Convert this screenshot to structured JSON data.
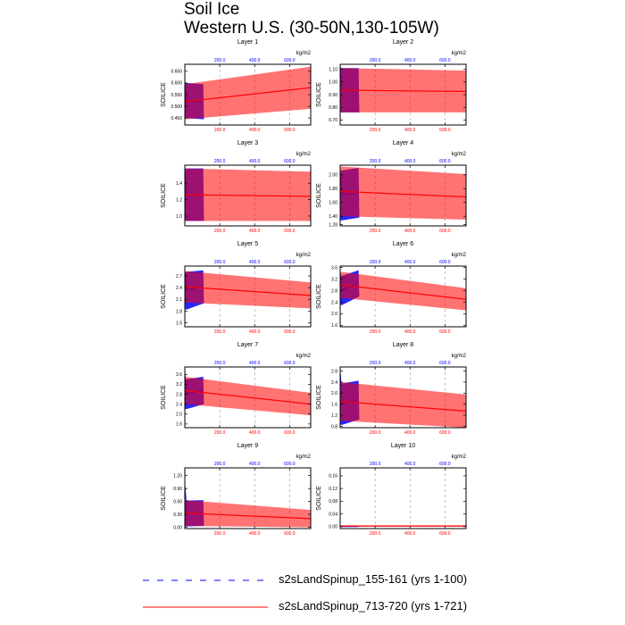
{
  "figure": {
    "title": "Soil Ice",
    "subtitle": "Western U.S. (30-50N,130-105W)"
  },
  "legend": [
    {
      "label": "s2sLandSpinup_155-161 (yrs 1-100)",
      "color": "#0000ff",
      "style": "dashed"
    },
    {
      "label": "s2sLandSpinup_713-720 (yrs 1-721)",
      "color": "#ff0000",
      "style": "solid"
    }
  ],
  "chart_data": [
    {
      "type": "line",
      "panel_title": "Layer 1",
      "ylabel": "SOILICE",
      "top_axis_label": "kg/m2",
      "ylim": [
        0.42,
        0.68
      ],
      "yticks": [
        0.45,
        0.5,
        0.55,
        0.6,
        0.65
      ],
      "ytick_decimals": 3,
      "xticks": [
        200,
        400,
        600
      ],
      "xlim": [
        0,
        721
      ],
      "series": [
        {
          "name": "s2sLandSpinup_155-161 (yrs 1-100)",
          "color": "#0000ff",
          "x_range": [
            1,
            100
          ],
          "mean": [
            0.525,
            0.52
          ],
          "amplitude": [
            0.075,
            0.075
          ],
          "spike": 0.6
        },
        {
          "name": "s2sLandSpinup_713-720 (yrs 1-721)",
          "color": "#ff0000",
          "x_range": [
            1,
            721
          ],
          "mean": [
            0.52,
            0.58
          ],
          "amplitude": [
            0.075,
            0.09
          ],
          "spike": 0.6
        }
      ]
    },
    {
      "type": "line",
      "panel_title": "Layer 2",
      "ylabel": "SOILICE",
      "top_axis_label": "kg/m2",
      "ylim": [
        0.66,
        1.14
      ],
      "yticks": [
        0.7,
        0.8,
        0.9,
        1.0,
        1.1
      ],
      "ytick_decimals": 2,
      "xticks": [
        200,
        400,
        600
      ],
      "xlim": [
        0,
        721
      ],
      "series": [
        {
          "name": "s2sLandSpinup_155-161 (yrs 1-100)",
          "color": "#0000ff",
          "x_range": [
            1,
            100
          ],
          "mean": [
            0.935,
            0.935
          ],
          "amplitude": [
            0.175,
            0.175
          ],
          "spike": 1.12
        },
        {
          "name": "s2sLandSpinup_713-720 (yrs 1-721)",
          "color": "#ff0000",
          "x_range": [
            1,
            721
          ],
          "mean": [
            0.935,
            0.925
          ],
          "amplitude": [
            0.175,
            0.165
          ],
          "spike": 1.12
        }
      ]
    },
    {
      "type": "line",
      "panel_title": "Layer 3",
      "ylabel": "SOILICE",
      "top_axis_label": "kg/m2",
      "ylim": [
        0.88,
        1.62
      ],
      "yticks": [
        1.0,
        1.2,
        1.4
      ],
      "ytick_decimals": 1,
      "xticks": [
        200,
        400,
        600
      ],
      "xlim": [
        0,
        721
      ],
      "series": [
        {
          "name": "s2sLandSpinup_155-161 (yrs 1-100)",
          "color": "#0000ff",
          "x_range": [
            1,
            100
          ],
          "mean": [
            1.26,
            1.26
          ],
          "amplitude": [
            0.32,
            0.32
          ],
          "spike": 1.55
        },
        {
          "name": "s2sLandSpinup_713-720 (yrs 1-721)",
          "color": "#ff0000",
          "x_range": [
            1,
            721
          ],
          "mean": [
            1.26,
            1.24
          ],
          "amplitude": [
            0.32,
            0.3
          ],
          "spike": 1.55
        }
      ]
    },
    {
      "type": "line",
      "panel_title": "Layer 4",
      "ylabel": "SOILICE",
      "top_axis_label": "kg/m2",
      "ylim": [
        1.26,
        2.14
      ],
      "yticks": [
        1.28,
        1.4,
        1.6,
        1.8,
        2.0
      ],
      "ytick_decimals": 2,
      "xticks": [
        200,
        400,
        600
      ],
      "xlim": [
        0,
        721
      ],
      "series": [
        {
          "name": "s2sLandSpinup_155-161 (yrs 1-100)",
          "color": "#0000ff",
          "x_range": [
            1,
            100
          ],
          "mean": [
            1.7,
            1.74
          ],
          "amplitude": [
            0.36,
            0.36
          ],
          "spike": 2.05
        },
        {
          "name": "s2sLandSpinup_713-720 (yrs 1-721)",
          "color": "#ff0000",
          "x_range": [
            1,
            721
          ],
          "mean": [
            1.76,
            1.68
          ],
          "amplitude": [
            0.36,
            0.33
          ],
          "spike": 2.05
        }
      ]
    },
    {
      "type": "line",
      "panel_title": "Layer 5",
      "ylabel": "SOILICE",
      "top_axis_label": "kg/m2",
      "ylim": [
        1.4,
        2.95
      ],
      "yticks": [
        1.5,
        1.8,
        2.1,
        2.4,
        2.7
      ],
      "ytick_decimals": 1,
      "xticks": [
        200,
        400,
        600
      ],
      "xlim": [
        0,
        721
      ],
      "series": [
        {
          "name": "s2sLandSpinup_155-161 (yrs 1-100)",
          "color": "#0000ff",
          "x_range": [
            1,
            100
          ],
          "mean": [
            2.32,
            2.42
          ],
          "amplitude": [
            0.48,
            0.42
          ],
          "spike": 2.8
        },
        {
          "name": "s2sLandSpinup_713-720 (yrs 1-721)",
          "color": "#ff0000",
          "x_range": [
            1,
            721
          ],
          "mean": [
            2.42,
            2.2
          ],
          "amplitude": [
            0.4,
            0.33
          ],
          "spike": 2.8
        }
      ]
    },
    {
      "type": "line",
      "panel_title": "Layer 6",
      "ylabel": "SOILICE",
      "top_axis_label": "kg/m2",
      "ylim": [
        1.55,
        3.65
      ],
      "yticks": [
        1.6,
        2.0,
        2.4,
        2.8,
        3.2,
        3.6
      ],
      "ytick_decimals": 1,
      "xticks": [
        200,
        400,
        600
      ],
      "xlim": [
        0,
        721
      ],
      "series": [
        {
          "name": "s2sLandSpinup_155-161 (yrs 1-100)",
          "color": "#0000ff",
          "x_range": [
            1,
            100
          ],
          "mean": [
            2.8,
            3.05
          ],
          "amplitude": [
            0.5,
            0.45
          ],
          "spike": 3.4
        },
        {
          "name": "s2sLandSpinup_713-720 (yrs 1-721)",
          "color": "#ff0000",
          "x_range": [
            1,
            721
          ],
          "mean": [
            3.0,
            2.5
          ],
          "amplitude": [
            0.45,
            0.38
          ],
          "spike": 3.4
        }
      ]
    },
    {
      "type": "line",
      "panel_title": "Layer 7",
      "ylabel": "SOILICE",
      "top_axis_label": "kg/m2",
      "ylim": [
        1.45,
        3.9
      ],
      "yticks": [
        1.6,
        2.0,
        2.4,
        2.8,
        3.2,
        3.6
      ],
      "ytick_decimals": 1,
      "xticks": [
        200,
        400,
        600
      ],
      "xlim": [
        0,
        721
      ],
      "series": [
        {
          "name": "s2sLandSpinup_155-161 (yrs 1-100)",
          "color": "#0000ff",
          "x_range": [
            1,
            100
          ],
          "mean": [
            2.8,
            2.95
          ],
          "amplitude": [
            0.6,
            0.55
          ],
          "spike": 3.6
        },
        {
          "name": "s2sLandSpinup_713-720 (yrs 1-721)",
          "color": "#ff0000",
          "x_range": [
            1,
            721
          ],
          "mean": [
            2.95,
            2.4
          ],
          "amplitude": [
            0.55,
            0.45
          ],
          "spike": 3.6
        }
      ]
    },
    {
      "type": "line",
      "panel_title": "Layer 8",
      "ylabel": "SOILICE",
      "top_axis_label": "kg/m2",
      "ylim": [
        0.75,
        2.95
      ],
      "yticks": [
        0.8,
        1.2,
        1.6,
        2.0,
        2.4,
        2.8
      ],
      "ytick_decimals": 1,
      "xticks": [
        200,
        400,
        600
      ],
      "xlim": [
        0,
        721
      ],
      "series": [
        {
          "name": "s2sLandSpinup_155-161 (yrs 1-100)",
          "color": "#0000ff",
          "x_range": [
            1,
            100
          ],
          "mean": [
            1.6,
            1.75
          ],
          "amplitude": [
            0.75,
            0.7
          ],
          "spike": 2.7
        },
        {
          "name": "s2sLandSpinup_713-720 (yrs 1-721)",
          "color": "#ff0000",
          "x_range": [
            1,
            721
          ],
          "mean": [
            1.7,
            1.35
          ],
          "amplitude": [
            0.7,
            0.6
          ],
          "spike": 2.7
        }
      ]
    },
    {
      "type": "line",
      "panel_title": "Layer 9",
      "ylabel": "SOILICE",
      "top_axis_label": "kg/m2",
      "ylim": [
        -0.03,
        1.38
      ],
      "yticks": [
        0.0,
        0.3,
        0.6,
        0.9,
        1.2
      ],
      "ytick_decimals": 2,
      "xticks": [
        200,
        400,
        600
      ],
      "xlim": [
        0,
        721
      ],
      "series": [
        {
          "name": "s2sLandSpinup_155-161 (yrs 1-100)",
          "color": "#0000ff",
          "x_range": [
            1,
            100
          ],
          "mean": [
            0.32,
            0.33
          ],
          "amplitude": [
            0.3,
            0.3
          ],
          "spike": 0.95
        },
        {
          "name": "s2sLandSpinup_713-720 (yrs 1-721)",
          "color": "#ff0000",
          "x_range": [
            1,
            721
          ],
          "mean": [
            0.33,
            0.2
          ],
          "amplitude": [
            0.3,
            0.2
          ],
          "spike": 0.95
        }
      ]
    },
    {
      "type": "line",
      "panel_title": "Layer 10",
      "ylabel": "SOILICE",
      "top_axis_label": "kg/m2",
      "ylim": [
        -0.006,
        0.185
      ],
      "yticks": [
        0.0,
        0.04,
        0.08,
        0.12,
        0.16
      ],
      "ytick_decimals": 2,
      "xticks": [
        200,
        400,
        600
      ],
      "xlim": [
        0,
        721
      ],
      "series": [
        {
          "name": "s2sLandSpinup_155-161 (yrs 1-100)",
          "color": "#0000ff",
          "x_range": [
            1,
            100
          ],
          "mean": [
            0.001,
            0.001
          ],
          "amplitude": [
            0.001,
            0.001
          ],
          "spike": 0.002
        },
        {
          "name": "s2sLandSpinup_713-720 (yrs 1-721)",
          "color": "#ff0000",
          "x_range": [
            1,
            721
          ],
          "mean": [
            0.002,
            0.002
          ],
          "amplitude": [
            0.001,
            0.001
          ],
          "spike": 0.002
        }
      ]
    }
  ]
}
